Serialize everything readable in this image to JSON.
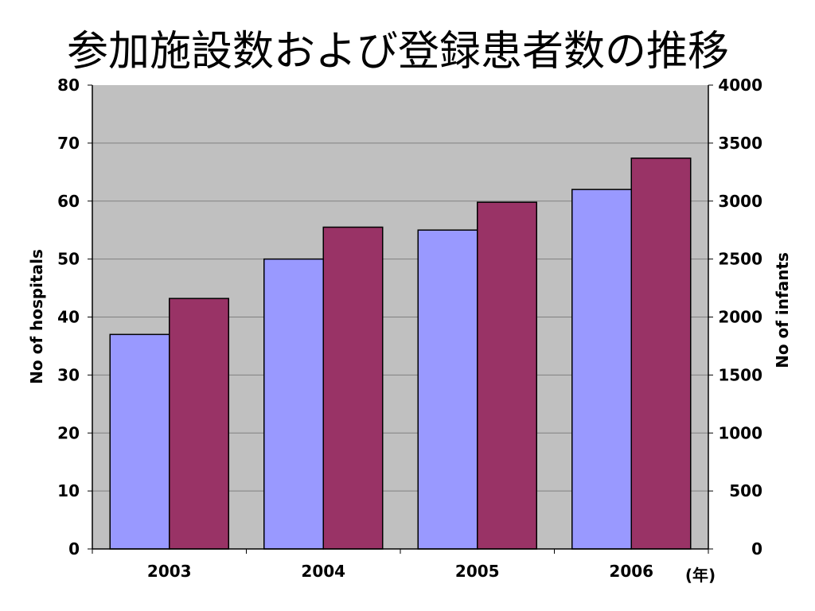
{
  "colors": {
    "plot_background": "#c0c0c0",
    "hospitals_bar": "#9999ff",
    "infants_bar": "#993366",
    "gridline": "#808080"
  },
  "chart_data": {
    "type": "bar",
    "title": "参加施設数および登録患者数の推移",
    "categories": [
      "2003",
      "2004",
      "2005",
      "2006"
    ],
    "xlabel": "(年)",
    "ylabel": "No of hospitals",
    "y2label": "No of infants",
    "ylim": [
      0,
      80
    ],
    "y2lim": [
      0,
      4000
    ],
    "yticks": [
      "0",
      "10",
      "20",
      "30",
      "40",
      "50",
      "60",
      "70",
      "80"
    ],
    "y2ticks": [
      "0",
      "500",
      "1000",
      "1500",
      "2000",
      "2500",
      "3000",
      "3500",
      "4000"
    ],
    "grid": true,
    "legend": "none",
    "series": [
      {
        "axis": "left",
        "color": "#9999ff",
        "values": [
          37,
          50,
          55,
          62
        ]
      },
      {
        "axis": "right",
        "color": "#993366",
        "values": [
          2160,
          2775,
          2990,
          3370
        ]
      }
    ]
  }
}
